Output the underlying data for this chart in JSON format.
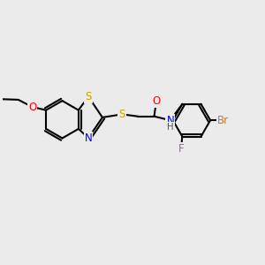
{
  "background_color": "#ebebeb",
  "atom_colors": {
    "S": "#c8a000",
    "N": "#0000ff",
    "O": "#ff0000",
    "Br": "#cc7722",
    "F": "#cc44cc",
    "C": "#000000",
    "H": "#555555"
  },
  "bond_color": "#000000",
  "bond_width": 1.5,
  "font_size": 8.5,
  "figsize": [
    3.0,
    3.0
  ],
  "dpi": 100,
  "xlim": [
    0,
    10
  ],
  "ylim": [
    0,
    10
  ]
}
